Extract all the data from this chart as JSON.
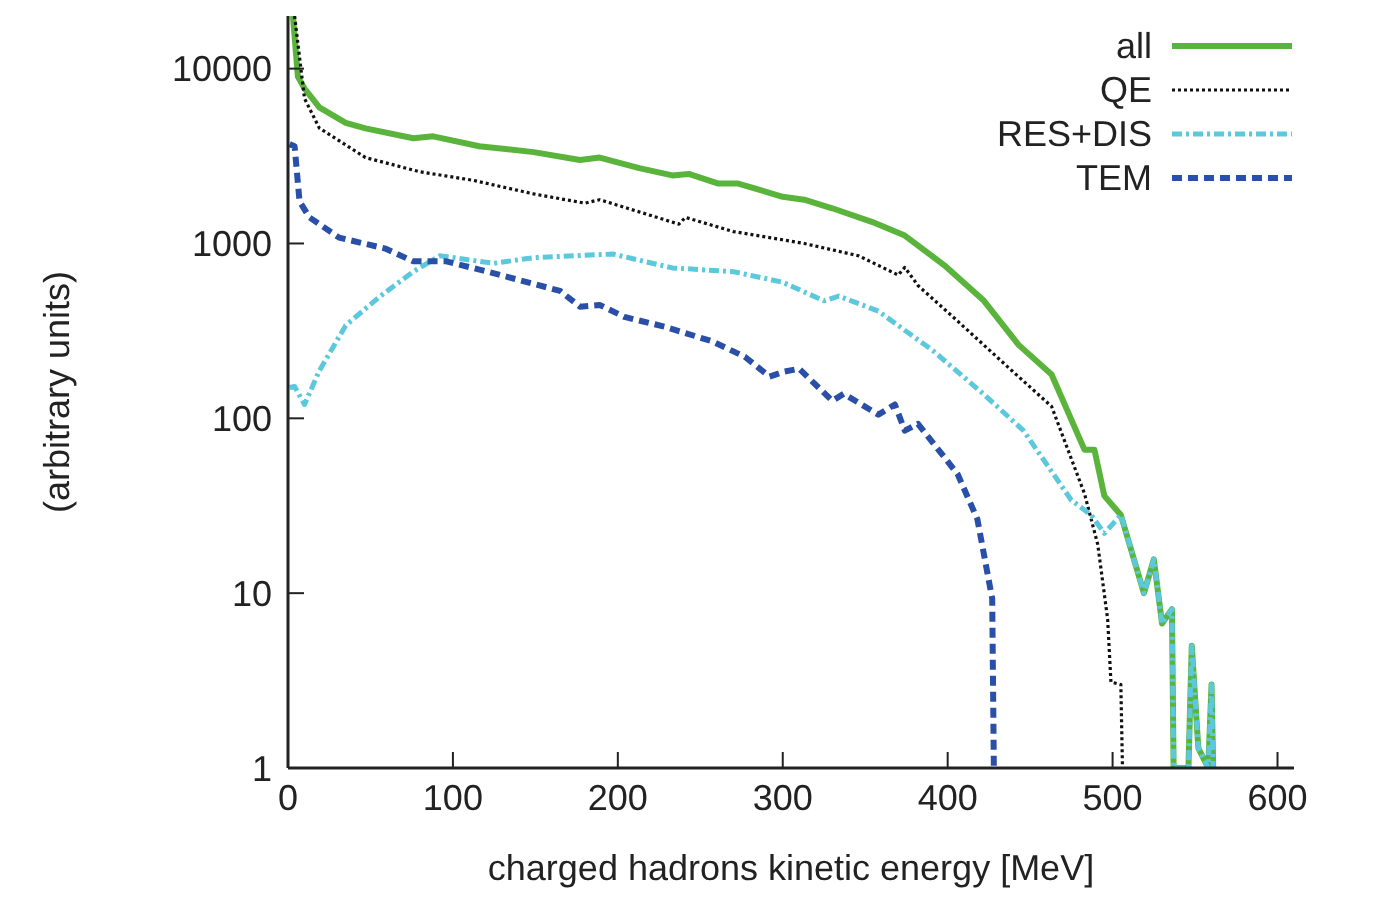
{
  "chart_data": {
    "type": "line",
    "xlabel": "charged hadrons kinetic energy [MeV]",
    "ylabel": "(arbitrary units)",
    "xlim": [
      0,
      610
    ],
    "xticks": [
      0,
      100,
      200,
      300,
      400,
      500,
      600
    ],
    "ylim": [
      1,
      20000
    ],
    "yticks": [
      1,
      10,
      100,
      1000,
      10000
    ],
    "log": "y",
    "grid": false,
    "legend": "top right",
    "marker": "none",
    "series": [
      {
        "name": "all",
        "color": "#5ab43c",
        "line_style": "solid",
        "x": [
          3,
          6,
          10,
          19,
          35,
          47,
          76,
          88,
          116,
          149,
          177,
          189,
          213,
          233,
          243,
          261,
          273,
          300,
          313,
          330,
          354,
          374,
          398,
          422,
          443,
          463,
          483,
          489,
          495,
          505,
          519,
          525,
          530,
          536,
          537,
          546,
          548,
          552,
          558,
          560,
          561
        ],
        "values": [
          20000,
          9000,
          7700,
          6000,
          4900,
          4550,
          4000,
          4100,
          3600,
          3330,
          3000,
          3100,
          2700,
          2450,
          2500,
          2200,
          2200,
          1850,
          1780,
          1590,
          1330,
          1110,
          750,
          470,
          263,
          178,
          66,
          66,
          36,
          28,
          10,
          15.6,
          6.7,
          8.1,
          1,
          1,
          5,
          1.3,
          1,
          3,
          1
        ]
      },
      {
        "name": "QE",
        "color": "#111111",
        "line_style": "dotted",
        "x": [
          4,
          10,
          19,
          47,
          80,
          112,
          149,
          180,
          189,
          237,
          241,
          270,
          300,
          313,
          346,
          370,
          374,
          382,
          406,
          439,
          463,
          483,
          491,
          497,
          499,
          505,
          506
        ],
        "values": [
          20000,
          6750,
          4570,
          3100,
          2570,
          2300,
          1920,
          1700,
          1780,
          1290,
          1410,
          1170,
          1050,
          1000,
          850,
          660,
          730,
          575,
          360,
          187,
          117,
          37,
          19,
          7.1,
          3.1,
          3,
          1
        ]
      },
      {
        "name": "RES+DIS",
        "color": "#5bc8dc",
        "line_style": "dashdot",
        "x": [
          1,
          4,
          10,
          19,
          35,
          56,
          76,
          92,
          125,
          149,
          197,
          233,
          270,
          300,
          325,
          334,
          358,
          391,
          422,
          446,
          475,
          487,
          495,
          505,
          519,
          525,
          530,
          536,
          537,
          546,
          548,
          552,
          558,
          560,
          561
        ],
        "values": [
          150,
          152,
          120,
          187,
          340,
          500,
          690,
          850,
          770,
          830,
          870,
          725,
          690,
          600,
          470,
          500,
          410,
          244,
          137,
          85,
          34,
          28,
          22,
          28,
          10,
          15.6,
          6.7,
          8.1,
          1,
          1,
          5,
          1.3,
          1,
          3,
          1
        ]
      },
      {
        "name": "TEM",
        "color": "#2a4fa8",
        "line_style": "dashed",
        "x": [
          1,
          4,
          7,
          13,
          31,
          59,
          76,
          96,
          125,
          165,
          177,
          189,
          204,
          229,
          257,
          277,
          292,
          301,
          310,
          330,
          337,
          358,
          368,
          374,
          382,
          406,
          418,
          427,
          428
        ],
        "values": [
          3700,
          3600,
          1740,
          1410,
          1080,
          935,
          790,
          790,
          675,
          535,
          435,
          445,
          380,
          333,
          276,
          225,
          173,
          185,
          192,
          126,
          138,
          105,
          120,
          85,
          93,
          48,
          26.5,
          9.3,
          1
        ]
      }
    ]
  }
}
